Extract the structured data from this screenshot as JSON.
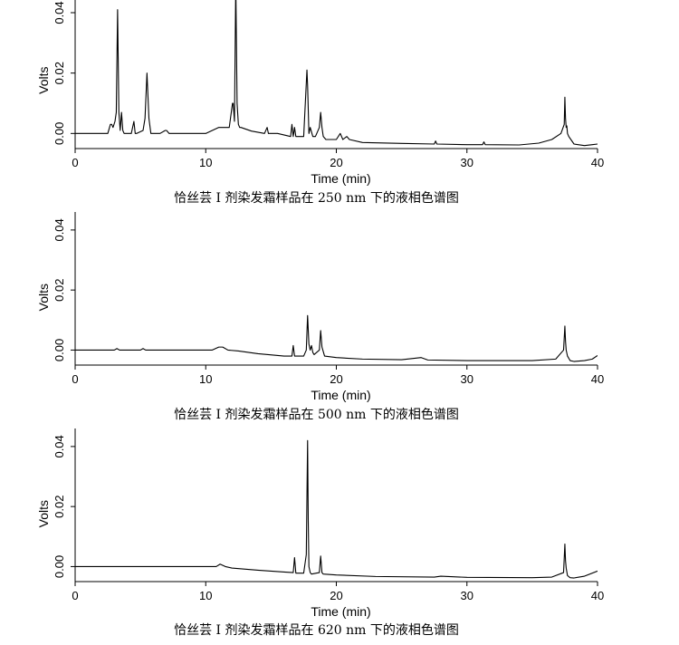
{
  "chart_data": [
    {
      "type": "line",
      "xlabel": "Time (min)",
      "ylabel": "Volts",
      "caption": "恰丝芸 I 剂染发霜样品在 250 nm 下的液相色谱图",
      "xlim": [
        0,
        40
      ],
      "ylim": [
        -0.005,
        0.046
      ],
      "xticks": [
        0,
        10,
        20,
        30,
        40
      ],
      "yticks": [
        0.0,
        0.02,
        0.04
      ],
      "ytick_labels": [
        "0.00",
        "0.02",
        "0.04"
      ],
      "series": [
        {
          "x": [
            0,
            2.5,
            2.7,
            2.8,
            2.9,
            3.05,
            3.15,
            3.25,
            3.35,
            3.45,
            3.55,
            3.65,
            3.75,
            4.3,
            4.5,
            4.6,
            4.7,
            5.2,
            5.35,
            5.5,
            5.65,
            5.8,
            6.5,
            6.9,
            7.0,
            7.2,
            8.0,
            10.0,
            11.0,
            11.3,
            11.8,
            12.05,
            12.1,
            12.2,
            12.3,
            12.4,
            12.5,
            12.6,
            12.7,
            13.5,
            14.5,
            14.7,
            14.8,
            15.5,
            16.5,
            16.6,
            16.7,
            16.8,
            16.9,
            17.0,
            17.5,
            17.75,
            17.8,
            17.9,
            18.0,
            18.2,
            18.4,
            18.7,
            18.8,
            18.9,
            19.0,
            19.2,
            20.0,
            20.3,
            20.5,
            20.8,
            21.0,
            22.0,
            25.0,
            27.5,
            27.6,
            27.7,
            30.0,
            31.2,
            31.3,
            31.4,
            34.0,
            35.5,
            36.5,
            37.2,
            37.45,
            37.5,
            37.55,
            37.6,
            37.65,
            37.7,
            37.8,
            38.2,
            39.0,
            39.6,
            40.0
          ],
          "y": [
            0.0,
            0.0,
            0.003,
            0.003,
            0.002,
            0.004,
            0.007,
            0.041,
            0.007,
            0.001,
            0.007,
            0.001,
            0.0,
            0.0,
            0.004,
            0.0,
            0.0,
            0.001,
            0.005,
            0.02,
            0.005,
            0.0,
            0.0,
            0.001,
            0.001,
            0.0,
            0.0,
            0.0,
            0.002,
            0.002,
            0.002,
            0.01,
            0.01,
            0.004,
            0.05,
            0.01,
            0.003,
            0.002,
            0.002,
            0.0008,
            0.0,
            0.002,
            0.0,
            0.0,
            -0.001,
            0.003,
            -0.001,
            0.002,
            -0.001,
            -0.001,
            -0.001,
            0.021,
            0.016,
            0.0,
            0.002,
            -0.001,
            -0.001,
            0.002,
            0.007,
            0.002,
            -0.001,
            -0.002,
            -0.002,
            0.0,
            -0.002,
            -0.001,
            -0.002,
            -0.003,
            -0.0033,
            -0.0035,
            -0.0025,
            -0.0035,
            -0.0037,
            -0.0037,
            -0.0028,
            -0.0037,
            -0.0038,
            -0.0032,
            -0.002,
            0.0,
            0.003,
            0.012,
            0.005,
            0.002,
            0.0025,
            0.0,
            -0.001,
            -0.0035,
            -0.004,
            -0.0037,
            -0.0035
          ]
        }
      ]
    },
    {
      "type": "line",
      "xlabel": "Time (min)",
      "ylabel": "Volts",
      "caption": "恰丝芸 I 剂染发霜样品在 500 nm 下的液相色谱图",
      "xlim": [
        0,
        40
      ],
      "ylim": [
        -0.005,
        0.046
      ],
      "xticks": [
        0,
        10,
        20,
        30,
        40
      ],
      "yticks": [
        0.0,
        0.02,
        0.04
      ],
      "ytick_labels": [
        "0.00",
        "0.02",
        "0.04"
      ],
      "series": [
        {
          "x": [
            0,
            3.0,
            3.2,
            3.4,
            5.0,
            5.2,
            5.4,
            10.5,
            11.0,
            11.3,
            11.7,
            12.5,
            14.0,
            16.0,
            16.6,
            16.7,
            16.8,
            17.5,
            17.7,
            17.8,
            17.9,
            18.0,
            18.1,
            18.2,
            18.3,
            18.7,
            18.8,
            18.9,
            19.1,
            20.0,
            22.0,
            25.0,
            26.5,
            27.0,
            30.0,
            35.0,
            36.8,
            37.4,
            37.5,
            37.55,
            37.6,
            37.7,
            37.9,
            38.2,
            39.0,
            39.6,
            40.0
          ],
          "y": [
            0.0,
            0.0,
            0.0005,
            0.0,
            0.0,
            0.0005,
            0.0,
            0.0,
            0.001,
            0.001,
            0.0,
            -0.0003,
            -0.0012,
            -0.002,
            -0.002,
            0.0015,
            -0.002,
            -0.002,
            0.0,
            0.0115,
            0.002,
            0.0,
            0.0015,
            -0.0008,
            -0.0015,
            0.0,
            0.0065,
            0.001,
            -0.002,
            -0.0025,
            -0.003,
            -0.0032,
            -0.0025,
            -0.0033,
            -0.0035,
            -0.0035,
            -0.003,
            0.0,
            0.008,
            0.003,
            0.0,
            -0.002,
            -0.0035,
            -0.0038,
            -0.0035,
            -0.003,
            -0.0018
          ]
        }
      ]
    },
    {
      "type": "line",
      "xlabel": "Time (min)",
      "ylabel": "Volts",
      "caption": "恰丝芸 I 剂染发霜样品在 620 nm 下的液相色谱图",
      "xlim": [
        0,
        40
      ],
      "ylim": [
        -0.005,
        0.046
      ],
      "xticks": [
        0,
        10,
        20,
        30,
        40
      ],
      "yticks": [
        0.0,
        0.02,
        0.04
      ],
      "ytick_labels": [
        "0.00",
        "0.02",
        "0.04"
      ],
      "series": [
        {
          "x": [
            0,
            10.8,
            11.1,
            11.5,
            12.0,
            14.0,
            16.0,
            16.7,
            16.8,
            16.9,
            17.5,
            17.7,
            17.8,
            17.85,
            17.9,
            18.0,
            18.1,
            18.7,
            18.8,
            18.9,
            19.0,
            20.0,
            23.0,
            27.5,
            28.0,
            30.0,
            35.0,
            36.5,
            37.4,
            37.5,
            37.55,
            37.6,
            37.7,
            37.9,
            38.2,
            39.0,
            40.0
          ],
          "y": [
            0.0,
            0.0,
            0.0008,
            0.0,
            -0.0005,
            -0.0012,
            -0.0018,
            -0.002,
            0.003,
            -0.0022,
            -0.0022,
            0.004,
            0.042,
            0.015,
            0.0,
            -0.002,
            -0.0025,
            -0.002,
            0.0035,
            -0.002,
            -0.0025,
            -0.0028,
            -0.0033,
            -0.0035,
            -0.0032,
            -0.0036,
            -0.0037,
            -0.0035,
            -0.002,
            0.0075,
            0.002,
            -0.0005,
            -0.003,
            -0.0037,
            -0.0038,
            -0.0032,
            -0.0015
          ]
        }
      ]
    }
  ]
}
